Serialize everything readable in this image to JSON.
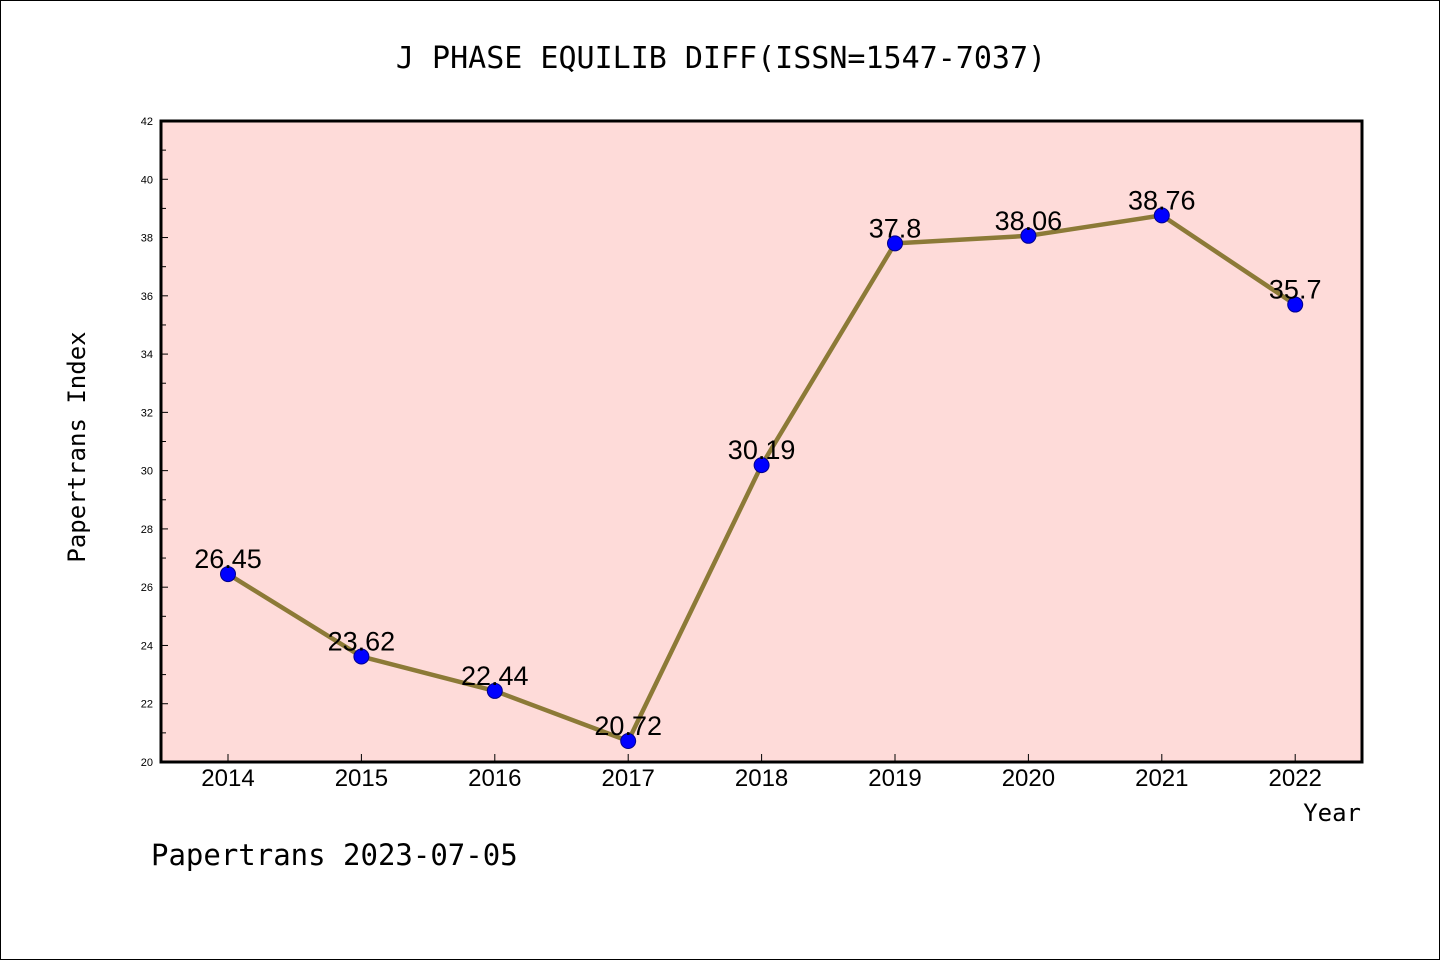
{
  "chart_data": {
    "type": "line",
    "title": "J PHASE EQUILIB DIFF(ISSN=1547-7037)",
    "xlabel": "Year",
    "ylabel": "Papertrans Index",
    "categories": [
      "2014",
      "2015",
      "2016",
      "2017",
      "2018",
      "2019",
      "2020",
      "2021",
      "2022"
    ],
    "values": [
      26.45,
      23.62,
      22.44,
      20.72,
      30.19,
      37.8,
      38.06,
      38.76,
      35.7
    ],
    "data_labels": [
      "26.45",
      "23.62",
      "22.44",
      "20.72",
      "30.19",
      "37.8",
      "38.06",
      "38.76",
      "35.7"
    ],
    "ylim": [
      20,
      42
    ],
    "yticks": [
      20,
      22,
      24,
      26,
      28,
      30,
      32,
      34,
      36,
      38,
      40,
      42
    ],
    "grid": false,
    "legend": "none"
  },
  "footer": {
    "text": "Papertrans 2023-07-05"
  },
  "colors": {
    "plot_background": "#fedbd9",
    "line": "#8c7a37",
    "marker": "#0000ff",
    "marker_edge": "#00008b",
    "axis": "#000000"
  }
}
